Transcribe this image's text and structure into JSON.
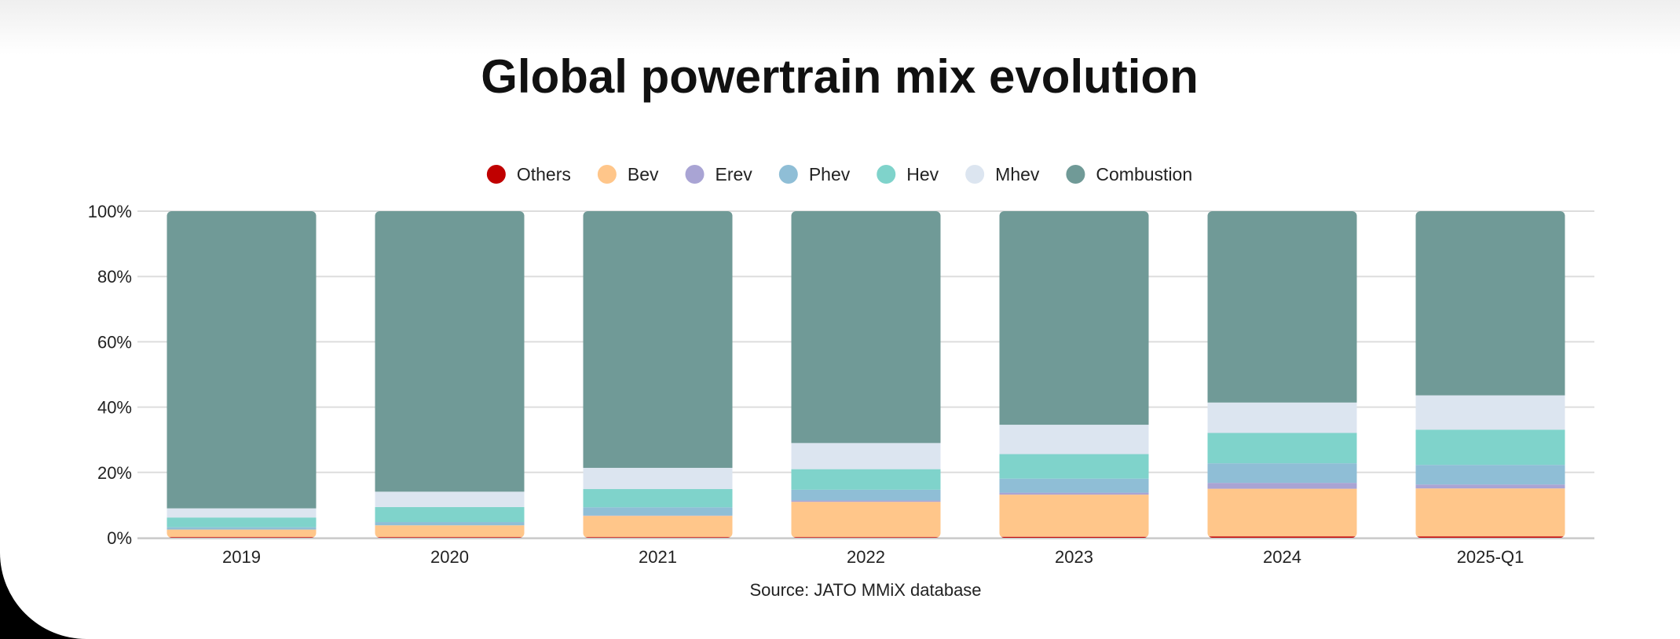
{
  "chart_data": {
    "type": "bar",
    "stacked": true,
    "title": "Global powertrain mix evolution",
    "source": "Source: JATO MMiX database",
    "categories": [
      "2019",
      "2020",
      "2021",
      "2022",
      "2023",
      "2024",
      "2025-Q1"
    ],
    "yaxis": {
      "ticks": [
        "0%",
        "20%",
        "40%",
        "60%",
        "80%",
        "100%"
      ],
      "tick_values": [
        0,
        20,
        40,
        60,
        80,
        100
      ],
      "ylim": [
        0,
        100
      ],
      "unit": "%"
    },
    "grid": true,
    "legend": {
      "position": "top-center"
    },
    "series": [
      {
        "name": "Others",
        "color": "#c00000",
        "values": [
          0.2,
          0.2,
          0.2,
          0.2,
          0.3,
          0.4,
          0.4
        ]
      },
      {
        "name": "Bev",
        "color": "#ffc68a",
        "values": [
          2.3,
          3.6,
          6.5,
          10.8,
          12.9,
          14.6,
          14.7
        ]
      },
      {
        "name": "Erev",
        "color": "#a9a4d4",
        "values": [
          0.0,
          0.0,
          0.1,
          0.4,
          0.6,
          1.8,
          1.2
        ]
      },
      {
        "name": "Phev",
        "color": "#8fbed6",
        "values": [
          0.7,
          1.0,
          2.5,
          3.3,
          4.3,
          6.0,
          6.0
        ]
      },
      {
        "name": "Hev",
        "color": "#7fd3cb",
        "values": [
          3.0,
          4.6,
          5.6,
          6.3,
          7.5,
          9.3,
          10.8
        ]
      },
      {
        "name": "Mhev",
        "color": "#dce5f0",
        "values": [
          2.8,
          4.7,
          6.5,
          8.0,
          9.0,
          9.3,
          10.5
        ]
      },
      {
        "name": "Combustion",
        "color": "#709a97",
        "values": [
          91.0,
          85.9,
          78.6,
          71.0,
          65.4,
          58.6,
          56.4
        ]
      }
    ]
  }
}
